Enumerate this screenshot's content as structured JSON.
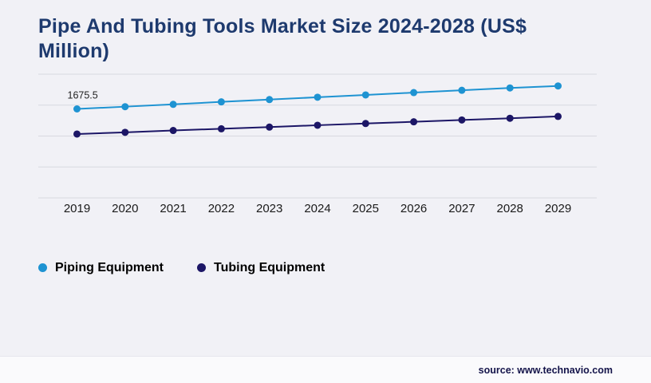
{
  "title": "Pipe And Tubing Tools Market Size 2024-2028 (US$ Million)",
  "source_text": "source: www.technavio.com",
  "colors": {
    "title": "#1e3a6e",
    "background": "#f1f1f6",
    "gridline": "#d8d9e0",
    "piping": "#1e93d2",
    "tubing": "#1c1666"
  },
  "legend": {
    "items": [
      {
        "label": "Piping Equipment",
        "color": "#1e93d2"
      },
      {
        "label": "Tubing Equipment",
        "color": "#1c1666"
      }
    ]
  },
  "chart_data": {
    "type": "line",
    "title": "Pipe And Tubing Tools Market Size 2024-2028 (US$ Million)",
    "categories": [
      "2019",
      "2020",
      "2021",
      "2022",
      "2023",
      "2024",
      "2025",
      "2026",
      "2027",
      "2028",
      "2029"
    ],
    "series": [
      {
        "name": "Piping Equipment",
        "color": "#1e93d2",
        "values": [
          1675.5,
          1690,
          1705,
          1721,
          1736,
          1751,
          1766,
          1781,
          1796,
          1811,
          1824
        ]
      },
      {
        "name": "Tubing Equipment",
        "color": "#1c1666",
        "values": [
          1513,
          1524,
          1536,
          1547,
          1558,
          1570,
          1581,
          1592,
          1604,
          1615,
          1627
        ]
      }
    ],
    "data_labels": [
      {
        "series": "Piping Equipment",
        "category": "2019",
        "text": "1675.5"
      }
    ],
    "xlabel": "",
    "ylabel": "",
    "ylim": [
      1100,
      1900
    ],
    "grid": true,
    "gridline_count": 5,
    "legend_position": "bottom"
  }
}
